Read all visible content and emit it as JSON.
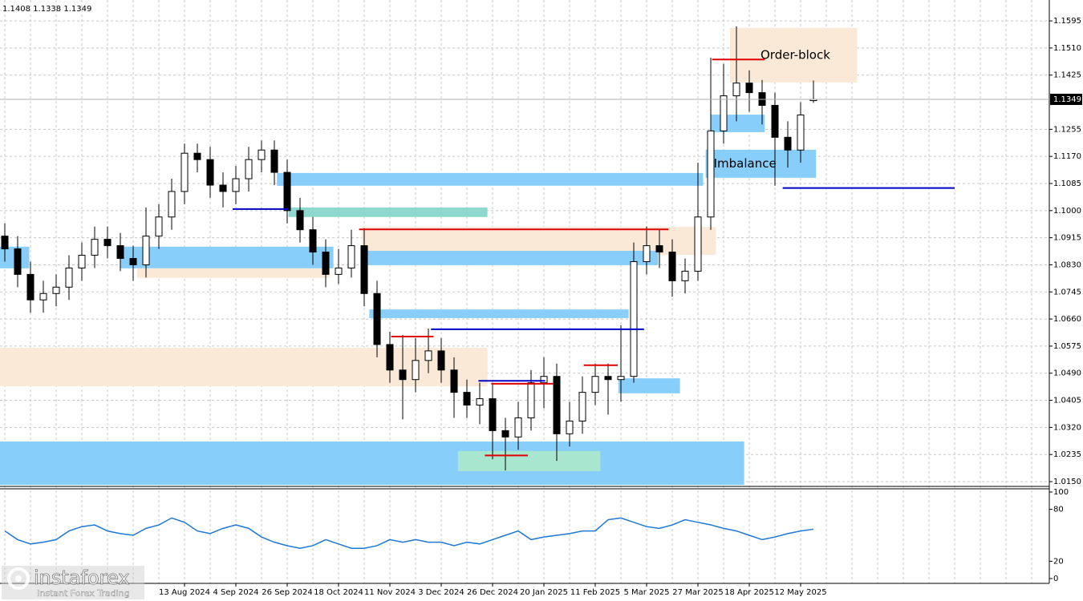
{
  "chart_data": {
    "type": "candlestick",
    "header": "1.1408 1.1338 1.1349",
    "current_price": 1.1349,
    "categories": [
      null,
      null,
      null,
      null,
      null,
      null,
      null,
      null,
      null,
      null,
      null,
      null,
      null,
      null,
      "13 Aug 2024",
      null,
      null,
      null,
      "4 Sep 2024",
      null,
      null,
      null,
      "26 Sep 2024",
      null,
      null,
      null,
      "18 Oct 2024",
      null,
      null,
      null,
      "11 Nov 2024",
      null,
      null,
      null,
      "3 Dec 2024",
      null,
      null,
      null,
      "26 Dec 2024",
      null,
      null,
      null,
      "20 Jan 2025",
      null,
      null,
      null,
      "11 Feb 2025",
      null,
      null,
      null,
      "5 Mar 2025",
      null,
      null,
      null,
      "27 Mar 2025",
      null,
      null,
      null,
      "18 Apr 2025",
      null,
      null,
      null,
      "12 May 2025",
      null
    ],
    "open": [
      1.092,
      1.088,
      1.08,
      1.072,
      1.074,
      1.076,
      1.082,
      1.086,
      1.091,
      1.089,
      1.085,
      1.083,
      1.092,
      1.098,
      1.106,
      1.118,
      1.116,
      1.108,
      1.106,
      1.11,
      1.116,
      1.119,
      1.112,
      1.1,
      1.094,
      1.087,
      1.08,
      1.082,
      1.089,
      1.074,
      1.058,
      1.05,
      1.047,
      1.053,
      1.056,
      1.05,
      1.043,
      1.039,
      1.041,
      1.031,
      1.029,
      1.035,
      1.046,
      1.048,
      1.03,
      1.034,
      1.043,
      1.048,
      1.047,
      1.048,
      1.084,
      1.089,
      1.087,
      1.078,
      1.081,
      1.098,
      1.125,
      1.136,
      1.14,
      1.137,
      1.133,
      1.123,
      1.119,
      1.1345
    ],
    "high": [
      1.096,
      1.092,
      1.084,
      1.078,
      1.08,
      1.086,
      1.09,
      1.095,
      1.095,
      1.093,
      1.089,
      1.101,
      1.102,
      1.11,
      1.121,
      1.121,
      1.12,
      1.112,
      1.114,
      1.12,
      1.122,
      1.122,
      1.116,
      1.104,
      1.098,
      1.091,
      1.088,
      1.094,
      1.0945,
      1.078,
      1.062,
      1.061,
      1.06,
      1.063,
      1.06,
      1.054,
      1.047,
      1.046,
      1.046,
      1.035,
      1.04,
      1.05,
      1.054,
      1.052,
      1.04,
      1.048,
      1.052,
      1.052,
      1.064,
      1.09,
      1.095,
      1.094,
      1.091,
      1.085,
      1.115,
      1.148,
      1.146,
      1.1578,
      1.144,
      1.141,
      1.137,
      1.128,
      1.134,
      1.1408
    ],
    "low": [
      1.084,
      1.076,
      1.068,
      1.068,
      1.07,
      1.072,
      1.078,
      1.082,
      1.085,
      1.081,
      1.078,
      1.079,
      1.088,
      1.094,
      1.102,
      1.112,
      1.104,
      1.101,
      1.102,
      1.106,
      1.112,
      1.108,
      1.096,
      1.09,
      1.083,
      1.076,
      1.077,
      1.079,
      1.07,
      1.054,
      1.046,
      1.0345,
      1.043,
      1.049,
      1.046,
      1.035,
      1.035,
      1.033,
      1.022,
      1.0185,
      1.025,
      1.031,
      1.038,
      1.0215,
      1.026,
      1.03,
      1.039,
      1.036,
      1.04,
      1.046,
      1.08,
      1.082,
      1.073,
      1.074,
      1.078,
      1.094,
      1.121,
      1.128,
      1.131,
      1.127,
      1.1078,
      1.1135,
      1.115,
      1.1338
    ],
    "close": [
      1.088,
      1.08,
      1.072,
      1.074,
      1.076,
      1.082,
      1.086,
      1.091,
      1.089,
      1.085,
      1.083,
      1.092,
      1.098,
      1.106,
      1.118,
      1.116,
      1.108,
      1.106,
      1.11,
      1.116,
      1.119,
      1.112,
      1.1,
      1.094,
      1.087,
      1.08,
      1.082,
      1.089,
      1.074,
      1.058,
      1.05,
      1.047,
      1.053,
      1.056,
      1.05,
      1.043,
      1.039,
      1.041,
      1.031,
      1.029,
      1.035,
      1.046,
      1.048,
      1.03,
      1.034,
      1.043,
      1.048,
      1.047,
      1.048,
      1.084,
      1.089,
      1.087,
      1.078,
      1.081,
      1.098,
      1.125,
      1.136,
      1.14,
      1.137,
      1.133,
      1.123,
      1.119,
      1.13,
      1.1349
    ],
    "ylim": [
      1.014,
      1.1648
    ],
    "yticks": [
      1.1595,
      {
        "value": 1.151,
        "label": "1.1510"
      },
      1.1425,
      1.1255,
      {
        "value": 1.117,
        "label": "1.1170"
      },
      1.1085,
      {
        "value": 1.1,
        "label": "1.1000"
      },
      1.0915,
      {
        "value": 1.083,
        "label": "1.0830"
      },
      1.0745,
      {
        "value": 1.066,
        "label": "1.0660"
      },
      1.0575,
      {
        "value": 1.049,
        "label": "1.0490"
      },
      1.0405,
      {
        "value": 1.032,
        "label": "1.0320"
      },
      1.0235,
      {
        "value": 1.015,
        "label": "1.0150"
      }
    ],
    "grid": true,
    "zones": [
      {
        "x0": -0.4,
        "x1": 57.6,
        "top": 1.0276,
        "bottom": 1.014,
        "color": "#87cefa"
      },
      {
        "x0": -0.4,
        "x1": 37.6,
        "top": 1.057,
        "bottom": 1.0449,
        "color": "#fae9d6"
      },
      {
        "x0": 27.8,
        "x1": 55.4,
        "top": 1.0949,
        "bottom": 1.0861,
        "color": "#fae9d6"
      },
      {
        "x0": 21.2,
        "x1": 54.4,
        "top": 1.1118,
        "bottom": 1.1078,
        "color": "#87cefa"
      },
      {
        "x0": 27.8,
        "x1": 50.9,
        "top": 1.0874,
        "bottom": 1.0829,
        "color": "#87cefa"
      },
      {
        "x0": 28.4,
        "x1": 48.6,
        "top": 1.069,
        "bottom": 1.0663,
        "color": "#87cefa"
      },
      {
        "x0": 47.8,
        "x1": 52.6,
        "top": 1.0474,
        "bottom": 1.0427,
        "color": "#87cefa"
      },
      {
        "x0": -0.4,
        "x1": 1.9,
        "top": 1.0887,
        "bottom": 1.0819,
        "color": "#87cefa"
      },
      {
        "x0": 9.0,
        "x1": 25.6,
        "top": 1.0887,
        "bottom": 1.0819,
        "color": "#87cefa"
      },
      {
        "x0": 10.3,
        "x1": 25.3,
        "top": 1.0819,
        "bottom": 1.0789,
        "color": "#fae9d6"
      },
      {
        "x0": 22.1,
        "x1": 37.6,
        "top": 1.101,
        "bottom": 1.098,
        "color": "#8fd8d0"
      },
      {
        "x0": 55.0,
        "x1": 59.2,
        "top": 1.1301,
        "bottom": 1.1246,
        "color": "#87cefa"
      },
      {
        "x0": 35.3,
        "x1": 46.4,
        "top": 1.0246,
        "bottom": 1.0183,
        "color": "#a8e6cf"
      },
      {
        "x0": 54.6,
        "x1": 63.2,
        "top": 1.1191,
        "bottom": 1.1103,
        "color": "#87cefa",
        "label": "Imbalance"
      },
      {
        "x0": 56.5,
        "x1": 66.4,
        "top": 1.1573,
        "bottom": 1.1402,
        "color": "#fae9d6",
        "label": "Order-block"
      }
    ],
    "levels": [
      {
        "x0": 55.1,
        "x1": 59.2,
        "price": 1.1474,
        "color": "#e00000"
      },
      {
        "x0": 60.6,
        "x1": 74.0,
        "price": 1.1071,
        "color": "#0000c8"
      },
      {
        "x0": 27.6,
        "x1": 51.7,
        "price": 1.0941,
        "color": "#e00000"
      },
      {
        "x0": 33.2,
        "x1": 49.8,
        "price": 1.0628,
        "color": "#0000c8"
      },
      {
        "x0": 30.1,
        "x1": 33.4,
        "price": 1.0605,
        "color": "#e00000"
      },
      {
        "x0": 45.1,
        "x1": 47.75,
        "price": 1.0515,
        "color": "#e00000"
      },
      {
        "x0": 17.75,
        "x1": 22.1,
        "price": 1.1005,
        "color": "#0000c8"
      },
      {
        "x0": 37.4,
        "x1": 40.75,
        "price": 1.0232,
        "color": "#e00000"
      },
      {
        "x0": 37.9,
        "x1": 42.75,
        "price": 1.0457,
        "color": "#e00000"
      },
      {
        "x0": 36.9,
        "x1": 42.1,
        "price": 1.0466,
        "color": "#0000c8"
      }
    ],
    "indicator": {
      "values": [
        55,
        45,
        40,
        42,
        45,
        55,
        60,
        62,
        55,
        52,
        50,
        58,
        62,
        70,
        65,
        55,
        52,
        58,
        62,
        58,
        48,
        42,
        38,
        35,
        38,
        45,
        40,
        35,
        35,
        38,
        45,
        42,
        45,
        42,
        42,
        38,
        42,
        40,
        45,
        50,
        55,
        45,
        48,
        50,
        52,
        55,
        55,
        68,
        70,
        65,
        60,
        58,
        62,
        68,
        65,
        62,
        58,
        55,
        50,
        45,
        48,
        52,
        55,
        57
      ],
      "ylim": [
        0,
        100
      ],
      "yticks": [
        100,
        80,
        20,
        0
      ],
      "color": "#1e78d8"
    },
    "watermark": {
      "brand": "instaforex",
      "tagline": "Instant Forex Trading"
    }
  }
}
